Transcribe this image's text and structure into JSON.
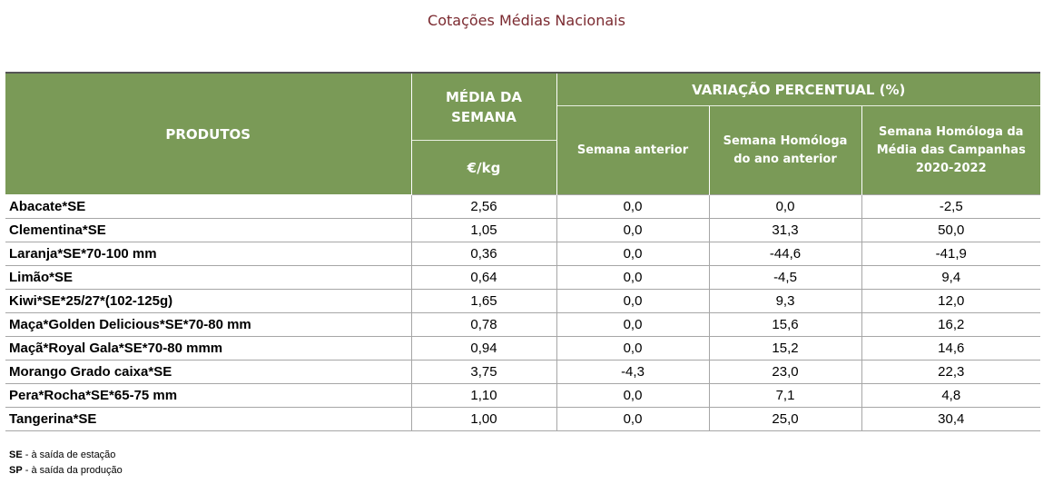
{
  "title": "Cotações Médias Nacionais",
  "header": {
    "produtos": "PRODUTOS",
    "media": "MÉDIA DA SEMANA",
    "unit": "€/kg",
    "variacao": "VARIAÇÃO PERCENTUAL (%)",
    "semana_anterior": "Semana anterior",
    "homologa_ano": "Semana Homóloga do ano anterior",
    "homologa_campanhas": "Semana Homóloga da Média das Campanhas 2020-2022"
  },
  "rows": [
    {
      "produto": "Abacate*SE",
      "media": "2,56",
      "anterior": "0,0",
      "homologa": "0,0",
      "campanhas": "-2,5"
    },
    {
      "produto": "Clementina*SE",
      "media": "1,05",
      "anterior": "0,0",
      "homologa": "31,3",
      "campanhas": "50,0"
    },
    {
      "produto": "Laranja*SE*70-100 mm",
      "media": "0,36",
      "anterior": "0,0",
      "homologa": "-44,6",
      "campanhas": "-41,9"
    },
    {
      "produto": "Limão*SE",
      "media": "0,64",
      "anterior": "0,0",
      "homologa": "-4,5",
      "campanhas": "9,4"
    },
    {
      "produto": "Kiwi*SE*25/27*(102-125g)",
      "media": "1,65",
      "anterior": "0,0",
      "homologa": "9,3",
      "campanhas": "12,0"
    },
    {
      "produto": "Maça*Golden Delicious*SE*70-80 mm",
      "media": "0,78",
      "anterior": "0,0",
      "homologa": "15,6",
      "campanhas": "16,2"
    },
    {
      "produto": "Maçã*Royal Gala*SE*70-80 mmm",
      "media": "0,94",
      "anterior": "0,0",
      "homologa": "15,2",
      "campanhas": "14,6"
    },
    {
      "produto": "Morango Grado caixa*SE",
      "media": "3,75",
      "anterior": "-4,3",
      "homologa": "23,0",
      "campanhas": "22,3"
    },
    {
      "produto": "Pera*Rocha*SE*65-75 mm",
      "media": "1,10",
      "anterior": "0,0",
      "homologa": "7,1",
      "campanhas": "4,8"
    },
    {
      "produto": "Tangerina*SE",
      "media": "1,00",
      "anterior": "0,0",
      "homologa": "25,0",
      "campanhas": "30,4"
    }
  ],
  "notes": [
    {
      "abbr": "SE",
      "text": " - à saída de estação"
    },
    {
      "abbr": "SP",
      "text": " - à saída da produção"
    }
  ],
  "colors": {
    "header_bg": "#7a9a57",
    "title": "#7b2a30"
  }
}
